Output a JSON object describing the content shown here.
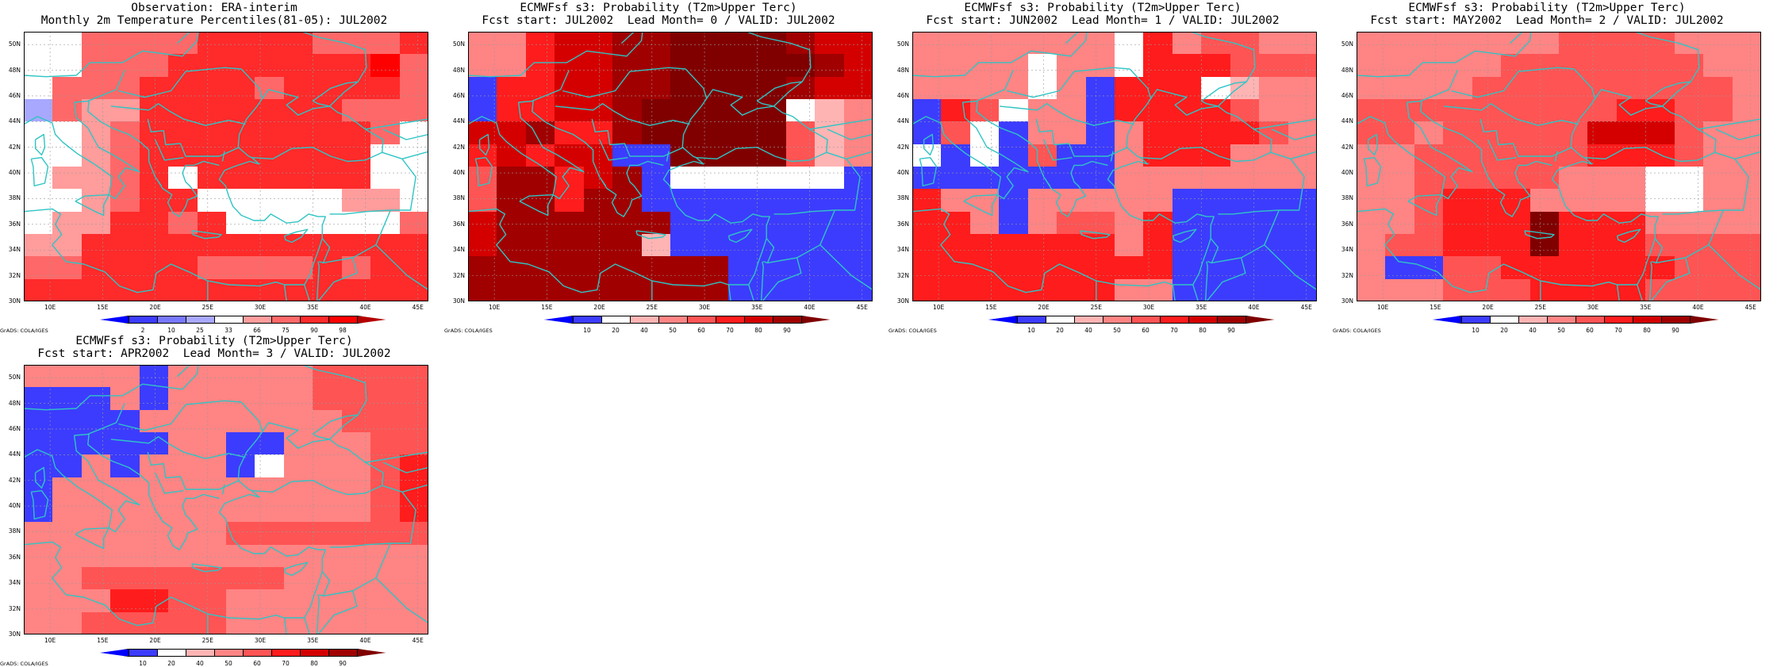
{
  "colors": {
    "coast": "#2fc4c4",
    "grid": "#9a9a9a",
    "obs_scale": [
      "#0000ff",
      "#3c3cff",
      "#7878ff",
      "#a8a8ff",
      "#ffffff",
      "#ff9c9c",
      "#ff6868",
      "#ff2a2a",
      "#ff0000",
      "#b40000"
    ],
    "prob_scale": [
      "#0000ff",
      "#3c3cff",
      "#ffffff",
      "#ffb4b4",
      "#ff8484",
      "#ff5454",
      "#ff1c1c",
      "#d40000",
      "#a00000",
      "#800000"
    ]
  },
  "map": {
    "lon_ticks": [
      "10E",
      "15E",
      "20E",
      "25E",
      "30E",
      "35E",
      "40E",
      "45E"
    ],
    "lat_ticks": [
      "30N",
      "32N",
      "34N",
      "36N",
      "38N",
      "40N",
      "42N",
      "44N",
      "46N",
      "48N",
      "50N"
    ]
  },
  "footer": "GrADS: COLA/IGES",
  "panels": [
    {
      "title_line1": "Observation: ERA-interim",
      "title_line2": "Monthly 2m Temperature Percentiles(81-05): JUL2002",
      "scale": "obs",
      "colorbar_labels": [
        "2",
        "10",
        "25",
        "33",
        "66",
        "75",
        "90",
        "98"
      ],
      "grid": [
        "44666677776667",
        "44666777777786",
        "46667777677776",
        "36557777777666",
        "44567777777764",
        "44567777777744",
        "45567477777744",
        "44567744444554",
        "45577674444446",
        "55777777777777",
        "66777766667677",
        "77777777777777"
      ]
    },
    {
      "title_line1": "ECMWFsf s3: Probability (T2m>Upper Terc)",
      "title_line2": "Fcst start: JUL2002  Lead Month= 0 / VALID: JUL2002",
      "scale": "prob",
      "colorbar_labels": [
        "10",
        "20",
        "40",
        "50",
        "60",
        "70",
        "80",
        "90"
      ],
      "grid": [
        "44677889999877",
        "44677889999987",
        "16677889999877",
        "16677899999234",
        "77866899999534",
        "67677119999534",
        "58867812222221",
        "58868811111111",
        "78888881111111",
        "78888831111111",
        "88888888811111",
        "88888888811111"
      ]
    },
    {
      "title_line1": "ECMWFsf s3: Probability (T2m>Upper Terc)",
      "title_line2": "Fcst start: JUN2002  Lead Month= 1 / VALID: JUL2002",
      "scale": "prob",
      "colorbar_labels": [
        "10",
        "20",
        "40",
        "50",
        "60",
        "70",
        "80",
        "90"
      ],
      "grid": [
        "44444442645544",
        "44442442666555",
        "44442416662344",
        "16524416666544",
        "15214414666654",
        "21215114666444",
        "11111114444444",
        "64414444411111",
        "66414554611111",
        "66666664611111",
        "66666666611111",
        "66666664411111"
      ]
    },
    {
      "title_line1": "ECMWFsf s3: Probability (T2m>Upper Terc)",
      "title_line2": "Fcst start: MAY2002  Lead Month= 2 / VALID: JUL2002",
      "scale": "prob",
      "colorbar_labels": [
        "10",
        "20",
        "40",
        "50",
        "60",
        "70",
        "80",
        "90"
      ],
      "grid": [
        "44444445555444",
        "44444555555544",
        "44445555555554",
        "55555555566554",
        "55455555777544",
        "44555555666544",
        "44555554442244",
        "44566644442244",
        "44566696664444",
        "45566696665555",
        "41155666666555",
        "44455566665555"
      ]
    },
    {
      "title_line1": "ECMWFsf s3: Probability (T2m>Upper Terc)",
      "title_line2": "Fcst start: APR2002  Lead Month= 3 / VALID: JUL2002",
      "scale": "prob",
      "colorbar_labels": [
        "10",
        "20",
        "40",
        "50",
        "60",
        "70",
        "80",
        "90"
      ],
      "grid": [
        "44441444445555",
        "11141444445555",
        "11114444444555",
        "11111441144455",
        "11414441244456",
        "14444444444456",
        "14444444444456",
        "44444445555555",
        "44444444444444",
        "44555555544444",
        "44466554444444",
        "44555554444444"
      ]
    }
  ]
}
